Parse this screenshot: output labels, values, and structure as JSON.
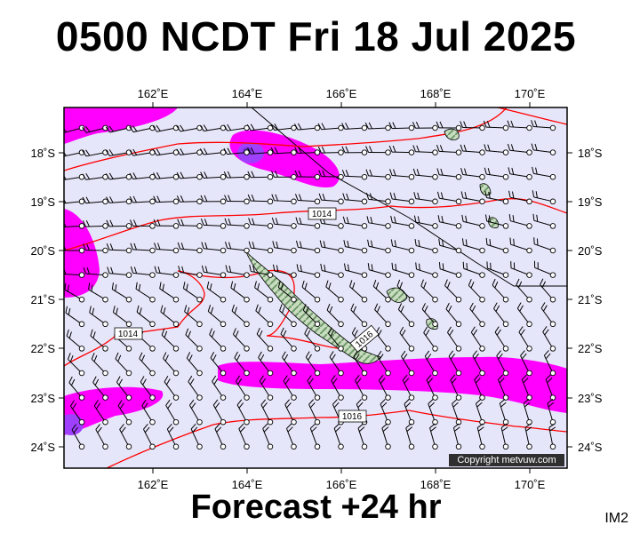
{
  "title": "0500 NCDT Fri 18 Jul 2025",
  "subtitle": "Forecast +24 hr",
  "corner_label": "IM2",
  "copyright": "Copyright metvuw.com",
  "map": {
    "lon_labels": [
      "162˚E",
      "164˚E",
      "166˚E",
      "168˚E",
      "170˚E"
    ],
    "lat_labels": [
      "18˚S",
      "19˚S",
      "20˚S",
      "21˚S",
      "22˚S",
      "23˚S",
      "24˚S"
    ],
    "isobar_labels": [
      "1014",
      "1014",
      "1016",
      "1016"
    ],
    "colors": {
      "background": "#e6e6fa",
      "wind_strong": "#ff00ff",
      "wind_core": "#a040ff",
      "isobar": "#ff0000",
      "land": "#a8c8a0",
      "frame": "#000000"
    }
  }
}
